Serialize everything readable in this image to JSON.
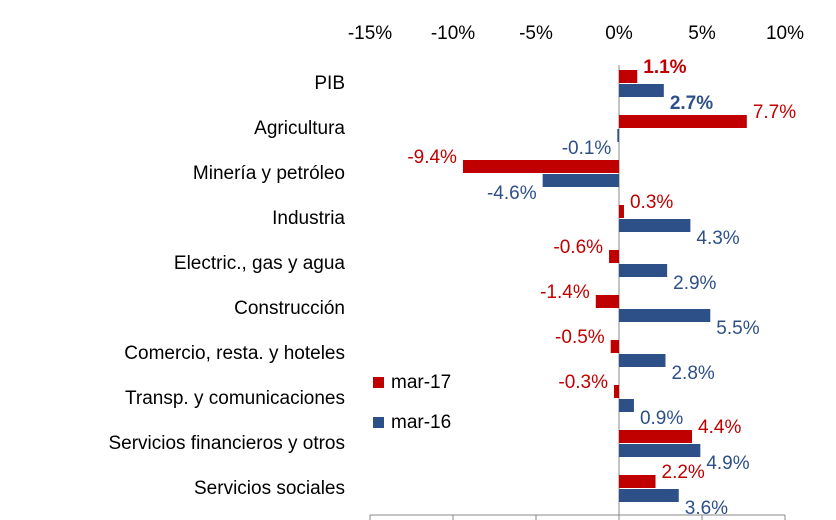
{
  "chart_data": {
    "type": "bar",
    "orientation": "horizontal",
    "categories": [
      "PIB",
      "Agricultura",
      "Minería y petróleo",
      "Industria",
      "Electric., gas y agua",
      "Construcción",
      "Comercio, resta. y hoteles",
      "Transp. y comunicaciones",
      "Servicios financieros y otros",
      "Servicios sociales"
    ],
    "series": [
      {
        "name": "mar-17",
        "color": "#c00000",
        "values": [
          1.1,
          7.7,
          -9.4,
          0.3,
          -0.6,
          -1.4,
          -0.5,
          -0.3,
          4.4,
          2.2
        ],
        "value_labels": [
          "1.1%",
          "7.7%",
          "-9.4%",
          "0.3%",
          "-0.6%",
          "-1.4%",
          "-0.5%",
          "-0.3%",
          "4.4%",
          "2.2%"
        ]
      },
      {
        "name": "mar-16",
        "color": "#2e5088",
        "values": [
          2.7,
          -0.1,
          -4.6,
          4.3,
          2.9,
          5.5,
          2.8,
          0.9,
          4.9,
          3.6
        ],
        "value_labels": [
          "2.7%",
          "-0.1%",
          "-4.6%",
          "4.3%",
          "2.9%",
          "5.5%",
          "2.8%",
          "0.9%",
          "4.9%",
          "3.6%"
        ]
      }
    ],
    "ylim": [
      -15,
      10
    ],
    "yticks": [
      {
        "value": -15,
        "label": "-15%"
      },
      {
        "value": -10,
        "label": "-10%"
      },
      {
        "value": -5,
        "label": "-5%"
      },
      {
        "value": 0,
        "label": "0%"
      },
      {
        "value": 5,
        "label": "5%"
      },
      {
        "value": 10,
        "label": "10%"
      }
    ],
    "legend": "left"
  }
}
